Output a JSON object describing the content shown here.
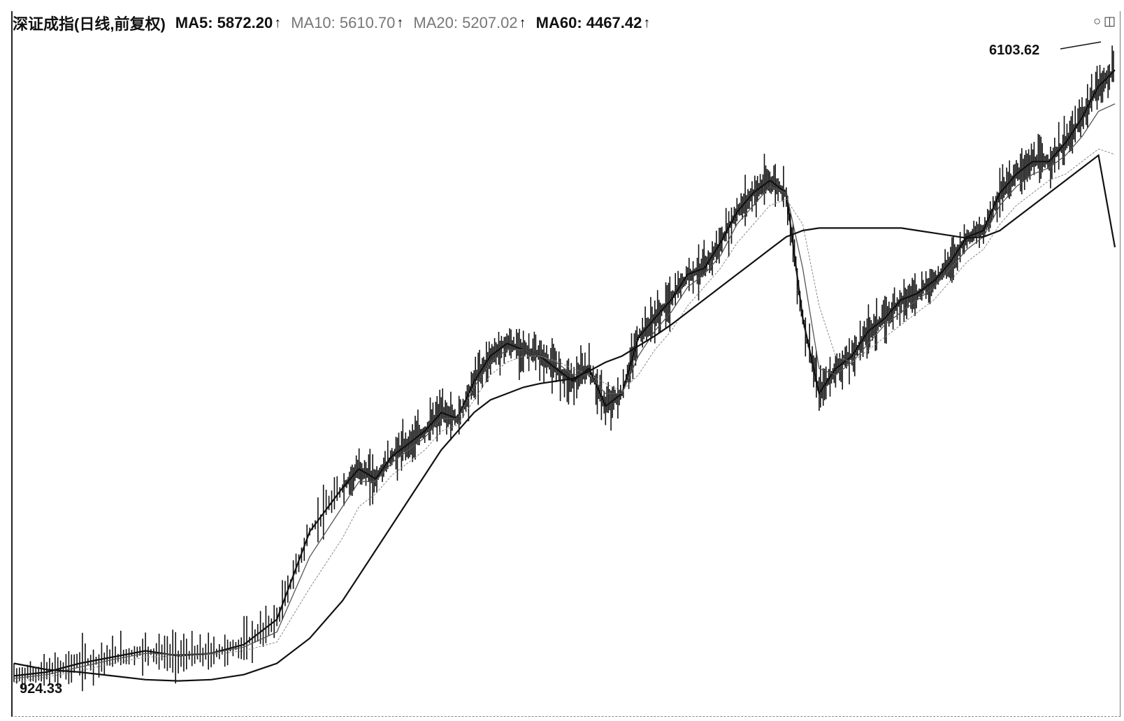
{
  "header": {
    "title": "深证成指(日线,前复权)",
    "ma5": "MA5: 5872.20",
    "ma10": "MA10: 5610.70",
    "ma20": "MA20: 5207.02",
    "ma60": "MA60: 4467.42",
    "arrow": "↑"
  },
  "colors": {
    "candle": "#111111",
    "ma5": "#111111",
    "ma10": "#555555",
    "ma20": "#888888",
    "ma60": "#111111"
  },
  "icons": [
    "zoom-out-icon",
    "window-icon"
  ],
  "chart_data": {
    "type": "line",
    "title": "深证成指(日线,前复权)",
    "xlabel": "",
    "ylabel": "",
    "ylim": [
      924.33,
      6103.62
    ],
    "grid": false,
    "high_label": "6103.62",
    "low_label": "924.33",
    "x": [
      0,
      20,
      40,
      60,
      80,
      100,
      120,
      140,
      160,
      180,
      200,
      210,
      220,
      230,
      240,
      250,
      260,
      270,
      280,
      290,
      300,
      310,
      320,
      330,
      340,
      350,
      360,
      370,
      380,
      390,
      400,
      410,
      420,
      430,
      440,
      450,
      460,
      470,
      480,
      490,
      500,
      510,
      520,
      530,
      540,
      550,
      560,
      570,
      580,
      590,
      600,
      610,
      620,
      630,
      640,
      650,
      660,
      670
    ],
    "series": [
      {
        "name": "MA5",
        "values": [
          1050,
          1080,
          1150,
          1200,
          1250,
          1210,
          1230,
          1300,
          1500,
          2200,
          2550,
          2700,
          2620,
          2800,
          2900,
          3000,
          3150,
          3100,
          3400,
          3600,
          3700,
          3650,
          3600,
          3500,
          3400,
          3500,
          3200,
          3300,
          3750,
          3900,
          4050,
          4250,
          4300,
          4500,
          4750,
          4900,
          5000,
          4900,
          3900,
          3300,
          3500,
          3600,
          3800,
          3900,
          4050,
          4100,
          4200,
          4350,
          4550,
          4600,
          4900,
          5050,
          5150,
          5150,
          5300,
          5500,
          5750,
          5880
        ]
      },
      {
        "name": "MA10",
        "values": [
          1030,
          1060,
          1120,
          1180,
          1230,
          1220,
          1230,
          1280,
          1400,
          2000,
          2400,
          2600,
          2600,
          2750,
          2850,
          2950,
          3100,
          3100,
          3350,
          3550,
          3650,
          3650,
          3600,
          3550,
          3450,
          3450,
          3300,
          3300,
          3600,
          3800,
          3950,
          4150,
          4250,
          4400,
          4650,
          4800,
          4950,
          4900,
          4300,
          3500,
          3450,
          3550,
          3700,
          3850,
          3950,
          4050,
          4150,
          4300,
          4450,
          4550,
          4800,
          4950,
          5050,
          5100,
          5200,
          5350,
          5550,
          5610
        ]
      },
      {
        "name": "MA20",
        "values": [
          1000,
          1040,
          1090,
          1150,
          1200,
          1210,
          1220,
          1250,
          1320,
          1750,
          2150,
          2400,
          2500,
          2650,
          2750,
          2850,
          3000,
          3050,
          3250,
          3450,
          3550,
          3600,
          3600,
          3560,
          3500,
          3450,
          3380,
          3320,
          3450,
          3650,
          3800,
          4000,
          4150,
          4300,
          4500,
          4650,
          4800,
          4850,
          4650,
          4000,
          3600,
          3550,
          3650,
          3750,
          3850,
          3950,
          4050,
          4200,
          4350,
          4450,
          4650,
          4800,
          4900,
          5000,
          5050,
          5150,
          5250,
          5207
        ]
      },
      {
        "name": "MA60",
        "values": [
          1150,
          1100,
          1080,
          1050,
          1020,
          1010,
          1020,
          1060,
          1150,
          1350,
          1650,
          1850,
          2050,
          2250,
          2450,
          2650,
          2850,
          3000,
          3150,
          3250,
          3300,
          3350,
          3380,
          3400,
          3420,
          3480,
          3550,
          3600,
          3680,
          3760,
          3850,
          3950,
          4050,
          4150,
          4250,
          4350,
          4450,
          4550,
          4600,
          4620,
          4620,
          4620,
          4620,
          4620,
          4620,
          4600,
          4580,
          4560,
          4540,
          4550,
          4600,
          4700,
          4800,
          4900,
          5000,
          5100,
          5200,
          4467
        ]
      }
    ]
  }
}
